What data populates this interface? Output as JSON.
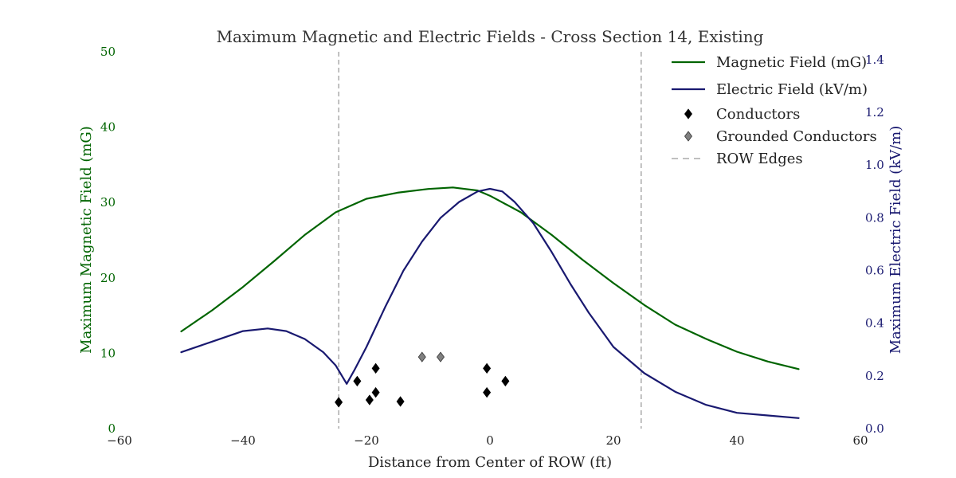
{
  "chart_data": {
    "type": "line",
    "title": "Maximum Magnetic and Electric Fields - Cross Section 14, Existing",
    "xlabel": "Distance from Center of ROW (ft)",
    "ylabel_left": "Maximum Magnetic Field (mG)",
    "ylabel_right": "Maximum Electric Field (kV/m)",
    "xlim": [
      -60,
      60
    ],
    "ylim_left": [
      0,
      50
    ],
    "ylim_right": [
      0.0,
      1.43
    ],
    "xticks": [
      -60,
      -40,
      -20,
      0,
      20,
      40,
      60
    ],
    "xtick_labels": [
      "−60",
      "−40",
      "−20",
      "0",
      "20",
      "40",
      "60"
    ],
    "yticks_left": [
      0,
      10,
      20,
      30,
      40,
      50
    ],
    "yticks_right": [
      0.0,
      0.2,
      0.4,
      0.6,
      0.8,
      1.0,
      1.2,
      1.4
    ],
    "ytick_labels_right": [
      "0.0",
      "0.2",
      "0.4",
      "0.6",
      "0.8",
      "1.0",
      "1.2",
      "1.4"
    ],
    "grid": false,
    "legend_position": "top-right",
    "series": [
      {
        "name": "Magnetic Field (mG)",
        "axis": "left",
        "color": "#006400",
        "x": [
          -50,
          -45,
          -40,
          -35,
          -30,
          -25,
          -20,
          -15,
          -10,
          -6,
          -2,
          0,
          5,
          10,
          15,
          20,
          25,
          30,
          35,
          40,
          45,
          50
        ],
        "y": [
          12.9,
          15.7,
          18.8,
          22.2,
          25.7,
          28.7,
          30.5,
          31.3,
          31.8,
          32.0,
          31.6,
          30.9,
          28.7,
          25.7,
          22.4,
          19.3,
          16.4,
          13.8,
          11.9,
          10.2,
          8.9,
          7.9
        ]
      },
      {
        "name": "Electric Field (kV/m)",
        "axis": "right",
        "color": "#191970",
        "x": [
          -50,
          -45,
          -40,
          -36,
          -33,
          -30,
          -27,
          -25,
          -23.2,
          -22,
          -20,
          -17,
          -14,
          -11,
          -8,
          -5,
          -2,
          0,
          2,
          4,
          7,
          10,
          13,
          16,
          20,
          25,
          30,
          35,
          40,
          45,
          50
        ],
        "y": [
          0.29,
          0.33,
          0.37,
          0.38,
          0.37,
          0.34,
          0.29,
          0.24,
          0.17,
          0.22,
          0.31,
          0.46,
          0.6,
          0.71,
          0.8,
          0.86,
          0.9,
          0.91,
          0.9,
          0.86,
          0.78,
          0.67,
          0.55,
          0.44,
          0.31,
          0.21,
          0.14,
          0.09,
          0.06,
          0.05,
          0.04
        ]
      }
    ],
    "conductors": [
      {
        "x": -24.5,
        "y": 3.5
      },
      {
        "x": -21.5,
        "y": 6.3
      },
      {
        "x": -19.5,
        "y": 3.8
      },
      {
        "x": -18.5,
        "y": 8.0
      },
      {
        "x": -18.5,
        "y": 4.8
      },
      {
        "x": -14.5,
        "y": 3.6
      },
      {
        "x": -0.5,
        "y": 8.0
      },
      {
        "x": -0.5,
        "y": 4.8
      },
      {
        "x": 2.5,
        "y": 6.3
      }
    ],
    "grounded_conductors": [
      {
        "x": -11,
        "y": 9.5
      },
      {
        "x": -8,
        "y": 9.5
      }
    ],
    "row_edges": [
      -24.5,
      24.5
    ],
    "legend": [
      {
        "label": "Magnetic Field (mG)",
        "marker": "line",
        "color": "#006400"
      },
      {
        "label": "Electric Field (kV/m)",
        "marker": "line",
        "color": "#191970"
      },
      {
        "label": "Conductors",
        "marker": "diamond",
        "color": "#000000"
      },
      {
        "label": "Grounded Conductors",
        "marker": "diamond",
        "color": "#808080"
      },
      {
        "label": "ROW Edges",
        "marker": "dashed",
        "color": "#808080"
      }
    ]
  }
}
